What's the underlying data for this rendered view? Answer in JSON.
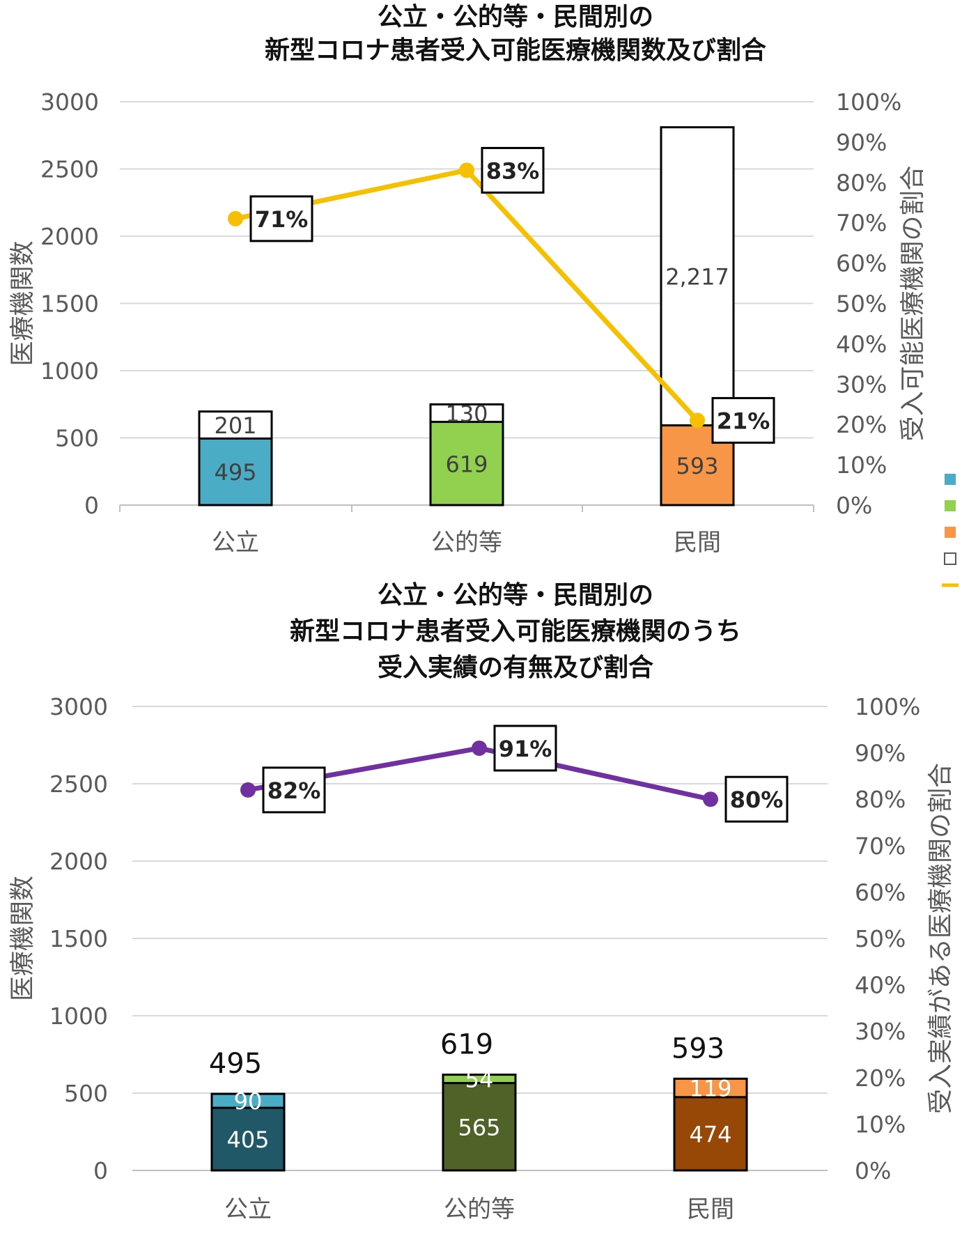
{
  "chart_data": [
    {
      "type": "bar",
      "stacked": true,
      "title_lines": [
        "公立・公的等・民間別の",
        "新型コロナ患者受入可能医療機関数及び割合"
      ],
      "categories": [
        "公立",
        "公的等",
        "民間"
      ],
      "ylabel": "医療機関数",
      "y2label": "受入可能医療機関の割合",
      "ylim": [
        0,
        3000
      ],
      "y_ticks": [
        "0",
        "500",
        "1000",
        "1500",
        "2000",
        "2500",
        "3000"
      ],
      "y2lim": [
        0,
        1
      ],
      "y2_ticks": [
        "0%",
        "10%",
        "20%",
        "30%",
        "40%",
        "50%",
        "60%",
        "70%",
        "80%",
        "90%",
        "100%"
      ],
      "grid": true,
      "series": [
        {
          "values": [
            495,
            619,
            593
          ],
          "labels": [
            "495",
            "619",
            "593"
          ],
          "colors": [
            "#4bacc6",
            "#92d050",
            "#f79646"
          ],
          "label_color": "#404040"
        },
        {
          "values": [
            201,
            130,
            2217
          ],
          "labels": [
            "201",
            "130",
            "2,217"
          ],
          "colors": [
            "#ffffff",
            "#ffffff",
            "#ffffff"
          ],
          "label_color": "#404040"
        }
      ],
      "line": {
        "values": [
          0.71,
          0.83,
          0.21
        ],
        "labels": [
          "71%",
          "83%",
          "21%"
        ],
        "color": "#f5c000",
        "axis": "right"
      },
      "legend_markers": [
        {
          "symbol": "square",
          "color": "#4bacc6"
        },
        {
          "symbol": "square",
          "color": "#92d050"
        },
        {
          "symbol": "square",
          "color": "#f79646"
        },
        {
          "symbol": "square-outline",
          "color": "#595959"
        },
        {
          "symbol": "line",
          "color": "#f5c000"
        }
      ]
    },
    {
      "type": "bar",
      "stacked": true,
      "title_lines": [
        "公立・公的等・民間別の",
        "新型コロナ患者受入可能医療機関のうち",
        "受入実績の有無及び割合"
      ],
      "categories": [
        "公立",
        "公的等",
        "民間"
      ],
      "ylabel": "医療機関数",
      "y2label": "受入実績がある医療機関の割合",
      "ylim": [
        0,
        3000
      ],
      "y_ticks": [
        "0",
        "500",
        "1000",
        "1500",
        "2000",
        "2500",
        "3000"
      ],
      "y2lim": [
        0,
        1
      ],
      "y2_ticks": [
        "0%",
        "10%",
        "20%",
        "30%",
        "40%",
        "50%",
        "60%",
        "70%",
        "80%",
        "90%",
        "100%"
      ],
      "grid": true,
      "series": [
        {
          "values": [
            405,
            565,
            474
          ],
          "labels": [
            "405",
            "565",
            "474"
          ],
          "colors": [
            "#215868",
            "#4f6228",
            "#974806"
          ],
          "label_color": "#ffffff"
        },
        {
          "values": [
            90,
            54,
            119
          ],
          "labels": [
            "90",
            "54",
            "119"
          ],
          "colors": [
            "#4bacc6",
            "#92d050",
            "#f79646"
          ],
          "label_color": "#ffffff"
        }
      ],
      "totals": [
        "495",
        "619",
        "593"
      ],
      "line": {
        "values": [
          0.82,
          0.91,
          0.8
        ],
        "labels": [
          "82%",
          "91%",
          "80%"
        ],
        "color": "#7030a0",
        "axis": "right"
      }
    }
  ]
}
